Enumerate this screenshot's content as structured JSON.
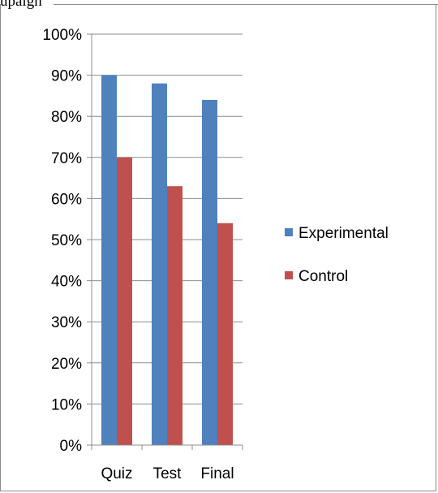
{
  "header_fragment": "upaign",
  "chart_data": {
    "type": "bar",
    "categories": [
      "Quiz",
      "Test",
      "Final"
    ],
    "series": [
      {
        "name": "Experimental",
        "values": [
          90,
          88,
          84
        ],
        "color": "#4f81bd"
      },
      {
        "name": "Control",
        "values": [
          70,
          63,
          54
        ],
        "color": "#c0504d"
      }
    ],
    "ylim": [
      0,
      100
    ],
    "yticks": [
      0,
      10,
      20,
      30,
      40,
      50,
      60,
      70,
      80,
      90,
      100
    ],
    "ytick_labels": [
      "0%",
      "10%",
      "20%",
      "30%",
      "40%",
      "50%",
      "60%",
      "70%",
      "80%",
      "90%",
      "100%"
    ],
    "grid": true,
    "legend_position": "right",
    "title": "",
    "xlabel": "",
    "ylabel": ""
  }
}
